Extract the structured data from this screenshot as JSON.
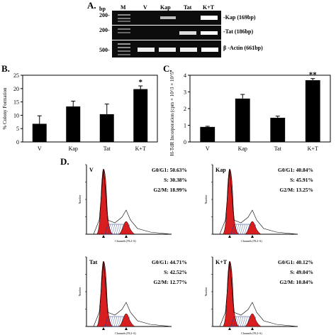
{
  "panels": {
    "a": "A.",
    "b": "B.",
    "c": "C.",
    "d": "D."
  },
  "gel": {
    "bp_label": "bp",
    "lanes": [
      "M",
      "V",
      "Kap",
      "Tat",
      "K+T"
    ],
    "ladder_marks": [
      "200-",
      "200-",
      "500-"
    ],
    "bands": [
      "-Kap (169bp)",
      "-Tat (186bp)",
      "β -Actin (661bp)"
    ]
  },
  "chart_data": [
    {
      "type": "bar",
      "categories": [
        "V",
        "Kap",
        "Tat",
        "K+T"
      ],
      "values": [
        6.8,
        13.3,
        10.4,
        19.8
      ],
      "errors": [
        3.0,
        2.0,
        3.8,
        1.2
      ],
      "ylabel": "% Colony Formation",
      "ylim": [
        0,
        25
      ],
      "yticks": [
        "0",
        "5",
        "10",
        "15",
        "20",
        "25"
      ],
      "significance": [
        "",
        "",
        "",
        "*"
      ],
      "bar_color": "#000000"
    },
    {
      "type": "bar",
      "categories": [
        "V",
        "Kap",
        "Tat",
        "K+T"
      ],
      "values": [
        0.9,
        2.6,
        1.45,
        3.7
      ],
      "errors": [
        0.04,
        0.25,
        0.1,
        0.1
      ],
      "ylabel": "³H-TdR Incorporation (cpm × 10^3 × 10^5 cells)",
      "ylim": [
        0,
        4
      ],
      "yticks": [
        "0",
        "1",
        "2",
        "3",
        "4"
      ],
      "significance": [
        "",
        "",
        "",
        "**"
      ],
      "bar_color": "#000000"
    }
  ],
  "flow": {
    "axis_x": "Channels (FL2-A)",
    "axis_y": "Number",
    "colors": {
      "g1": "#d81e1e",
      "s": "#2a3a8a",
      "g2": "#d81e1e"
    },
    "plots": [
      {
        "name": "V",
        "g1": "G0/G1: 50.63%",
        "s": "S: 30.38%",
        "g2": "G2/M: 18.99%"
      },
      {
        "name": "Kap",
        "g1": "G0/G1: 40.84%",
        "s": "S: 45.91%",
        "g2": "G2/M: 13.25%"
      },
      {
        "name": "Tat",
        "g1": "G0/G1: 44.71%",
        "s": "S: 42.52%",
        "g2": "G2/M: 12.77%"
      },
      {
        "name": "K+T",
        "g1": "G0/G1: 40.12%",
        "s": "S: 49.04%",
        "g2": "G2/M: 10.84%"
      }
    ]
  }
}
